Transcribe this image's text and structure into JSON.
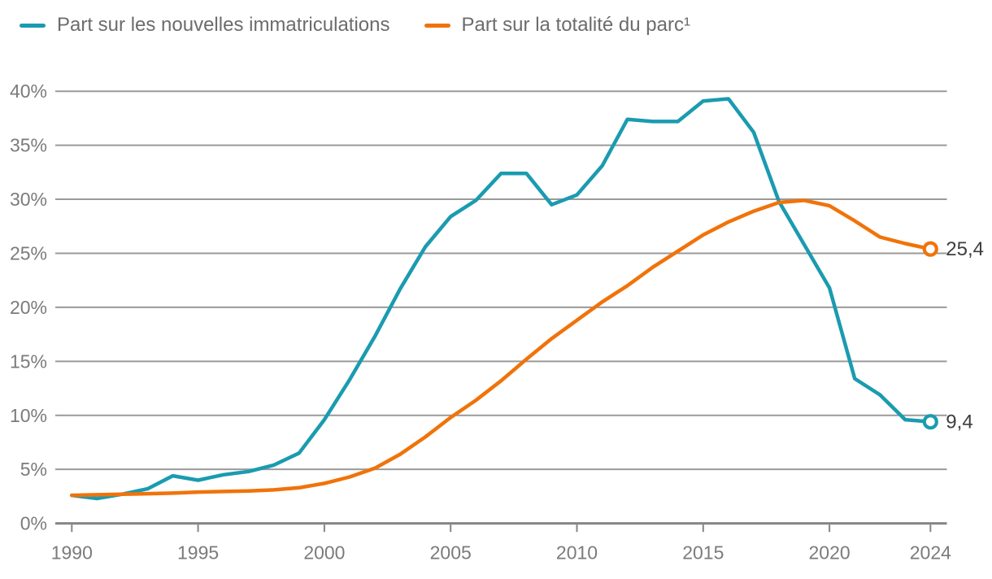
{
  "legend": {
    "items": [
      {
        "label": "Part sur les nouvelles immatriculations",
        "color": "#1a9bb0"
      },
      {
        "label": "Part sur la totalité du parc¹",
        "color": "#f0730a"
      }
    ]
  },
  "y_axis": {
    "labels": [
      "0%",
      "5%",
      "10%",
      "15%",
      "20%",
      "25%",
      "30%",
      "35%",
      "40%"
    ]
  },
  "x_axis": {
    "labels": [
      "1990",
      "1995",
      "2000",
      "2005",
      "2010",
      "2015",
      "2020",
      "2024"
    ]
  },
  "chart_data": {
    "type": "line",
    "title": "",
    "xlabel": "",
    "ylabel": "",
    "grid": true,
    "legend_position": "top-left",
    "ylim": [
      0,
      40
    ],
    "ytick_step": 5,
    "ytick_suffix": "%",
    "xticks": [
      1990,
      1995,
      2000,
      2005,
      2010,
      2015,
      2020,
      2024
    ],
    "x": [
      1990,
      1991,
      1992,
      1993,
      1994,
      1995,
      1996,
      1997,
      1998,
      1999,
      2000,
      2001,
      2002,
      2003,
      2004,
      2005,
      2006,
      2007,
      2008,
      2009,
      2010,
      2011,
      2012,
      2013,
      2014,
      2015,
      2016,
      2017,
      2018,
      2019,
      2020,
      2021,
      2022,
      2023,
      2024
    ],
    "series": [
      {
        "name": "Part sur les nouvelles immatriculations",
        "color": "#1a9bb0",
        "end_label": "9,4",
        "end_value": 9.4,
        "values": [
          2.6,
          2.3,
          2.7,
          3.2,
          4.4,
          4.0,
          4.5,
          4.8,
          5.4,
          6.5,
          9.6,
          13.3,
          17.3,
          21.7,
          25.6,
          28.4,
          29.9,
          32.4,
          32.4,
          29.5,
          30.4,
          33.1,
          37.4,
          37.2,
          37.2,
          39.1,
          39.3,
          36.2,
          29.8,
          25.8,
          21.8,
          13.4,
          11.9,
          9.6,
          9.4
        ]
      },
      {
        "name": "Part sur la totalité du parc¹",
        "color": "#f0730a",
        "end_label": "25,4",
        "end_value": 25.4,
        "values": [
          2.6,
          2.65,
          2.7,
          2.75,
          2.8,
          2.9,
          2.95,
          3.0,
          3.1,
          3.3,
          3.7,
          4.3,
          5.1,
          6.4,
          8.0,
          9.8,
          11.4,
          13.2,
          15.2,
          17.1,
          18.8,
          20.5,
          22.0,
          23.7,
          25.2,
          26.7,
          27.9,
          28.9,
          29.7,
          29.9,
          29.4,
          28.0,
          26.5,
          25.9,
          25.4
        ]
      }
    ]
  }
}
